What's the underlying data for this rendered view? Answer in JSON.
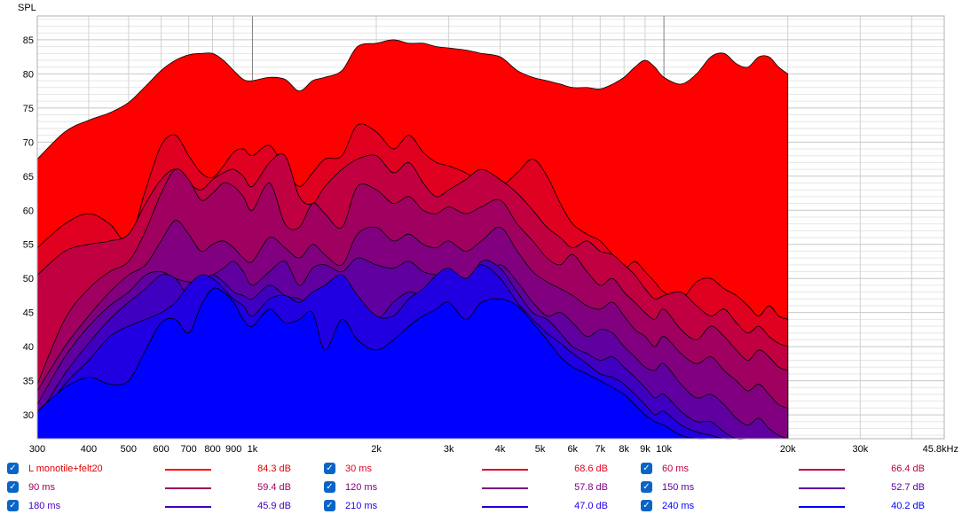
{
  "chart_data": {
    "type": "area",
    "title": "",
    "ylabel": "SPL",
    "xlabel": "",
    "x_scale": "log",
    "xlim": [
      300,
      48000
    ],
    "ylim": [
      26.5,
      88.5
    ],
    "grid": true,
    "x_ticks": [
      {
        "value": 300,
        "label": "300"
      },
      {
        "value": 400,
        "label": "400"
      },
      {
        "value": 500,
        "label": "500"
      },
      {
        "value": 600,
        "label": "600"
      },
      {
        "value": 700,
        "label": "700"
      },
      {
        "value": 800,
        "label": "800"
      },
      {
        "value": 900,
        "label": "900"
      },
      {
        "value": 1000,
        "label": "1k"
      },
      {
        "value": 2000,
        "label": "2k"
      },
      {
        "value": 3000,
        "label": "3k"
      },
      {
        "value": 4000,
        "label": "4k"
      },
      {
        "value": 5000,
        "label": "5k"
      },
      {
        "value": 6000,
        "label": "6k"
      },
      {
        "value": 7000,
        "label": "7k"
      },
      {
        "value": 8000,
        "label": "8k"
      },
      {
        "value": 9000,
        "label": "9k"
      },
      {
        "value": 10000,
        "label": "10k"
      },
      {
        "value": 20000,
        "label": "20k"
      },
      {
        "value": 30000,
        "label": "30k"
      },
      {
        "value": 45800,
        "label": "45.8kHz"
      }
    ],
    "y_ticks": [
      30,
      35,
      40,
      45,
      50,
      55,
      60,
      65,
      70,
      75,
      80,
      85
    ],
    "x": [
      300,
      350,
      400,
      450,
      500,
      550,
      600,
      650,
      700,
      750,
      800,
      850,
      900,
      950,
      1000,
      1100,
      1200,
      1300,
      1400,
      1500,
      1650,
      1800,
      2000,
      2200,
      2400,
      2600,
      2800,
      3000,
      3300,
      3600,
      4000,
      4400,
      4800,
      5200,
      5600,
      6000,
      6500,
      7000,
      7500,
      8000,
      8500,
      9000,
      9500,
      10000,
      11000,
      12000,
      13000,
      14000,
      15000,
      16000,
      17000,
      18000,
      19000,
      20000
    ],
    "series": [
      {
        "name": "L monotile+felt20",
        "color": "#ff0000",
        "value_label": "84.3 dB",
        "values": [
          67.5,
          71.5,
          73.2,
          74.3,
          75.8,
          78.2,
          80.5,
          82.0,
          82.8,
          83.0,
          83.0,
          82.0,
          80.5,
          79.2,
          79.0,
          79.5,
          79.2,
          77.5,
          79.0,
          79.5,
          80.5,
          84.0,
          84.5,
          85.0,
          84.5,
          84.5,
          84.0,
          83.8,
          83.5,
          83.0,
          82.5,
          80.5,
          79.5,
          79.0,
          78.5,
          78.0,
          78.0,
          77.8,
          78.5,
          79.5,
          81.0,
          82.0,
          81.0,
          79.5,
          78.5,
          80.0,
          82.5,
          83.0,
          81.5,
          81.0,
          82.5,
          82.5,
          81.0,
          80.0
        ]
      },
      {
        "name": "30 ms",
        "color": "#e00020",
        "value_label": "68.6 dB",
        "values": [
          54.5,
          58.0,
          59.5,
          58.0,
          55.5,
          63.0,
          69.5,
          71.0,
          68.0,
          65.5,
          64.8,
          66.5,
          68.5,
          69.0,
          68.0,
          69.5,
          66.0,
          63.5,
          65.5,
          67.5,
          68.0,
          72.5,
          71.5,
          69.0,
          71.0,
          68.5,
          67.0,
          66.5,
          65.5,
          64.0,
          63.5,
          65.5,
          67.5,
          65.0,
          61.0,
          58.0,
          56.5,
          55.5,
          53.5,
          51.5,
          52.5,
          51.0,
          49.5,
          48.0,
          47.0,
          49.5,
          50.0,
          48.5,
          47.5,
          46.0,
          44.5,
          46.0,
          44.5,
          44.0
        ]
      },
      {
        "name": "60 ms",
        "color": "#c00040",
        "value_label": "66.4 dB",
        "values": [
          50.5,
          54.0,
          55.0,
          55.5,
          56.5,
          61.0,
          64.5,
          66.0,
          64.0,
          63.0,
          64.5,
          65.5,
          66.0,
          65.0,
          63.5,
          67.0,
          68.0,
          62.0,
          61.0,
          63.5,
          66.0,
          67.5,
          68.0,
          65.5,
          67.0,
          64.0,
          62.0,
          63.0,
          64.5,
          66.0,
          64.5,
          62.5,
          60.0,
          57.5,
          56.0,
          54.5,
          55.5,
          54.0,
          53.5,
          52.0,
          50.5,
          48.5,
          47.0,
          47.5,
          48.0,
          46.0,
          44.5,
          45.5,
          43.5,
          42.0,
          43.0,
          41.5,
          40.5,
          40.0
        ]
      },
      {
        "name": "90 ms",
        "color": "#a00060",
        "value_label": "59.4 dB",
        "values": [
          34.5,
          44.0,
          48.5,
          51.0,
          52.5,
          57.0,
          62.5,
          66.0,
          64.5,
          61.5,
          62.5,
          64.0,
          63.5,
          62.0,
          60.0,
          64.0,
          58.0,
          57.5,
          61.0,
          59.5,
          57.5,
          63.5,
          63.0,
          61.0,
          62.0,
          60.0,
          59.5,
          60.5,
          59.5,
          60.5,
          61.5,
          58.0,
          55.5,
          53.0,
          52.0,
          53.5,
          51.0,
          49.0,
          50.0,
          48.0,
          46.5,
          45.0,
          44.0,
          45.5,
          42.5,
          41.0,
          43.0,
          41.5,
          39.5,
          38.0,
          39.5,
          38.5,
          37.0,
          36.5
        ]
      },
      {
        "name": "120 ms",
        "color": "#800080",
        "value_label": "57.8 dB",
        "values": [
          33.5,
          40.0,
          44.5,
          48.0,
          50.5,
          52.0,
          55.5,
          58.5,
          56.5,
          54.0,
          55.0,
          55.5,
          54.5,
          53.0,
          52.5,
          56.0,
          54.5,
          53.0,
          55.0,
          53.5,
          52.0,
          56.5,
          57.5,
          55.5,
          56.5,
          55.0,
          54.5,
          55.5,
          54.0,
          55.5,
          57.5,
          54.0,
          51.0,
          49.5,
          48.5,
          47.5,
          46.0,
          45.5,
          46.5,
          44.5,
          42.5,
          41.5,
          40.0,
          41.5,
          39.0,
          37.5,
          38.5,
          36.5,
          35.0,
          33.5,
          34.5,
          33.0,
          31.5,
          31.0
        ]
      },
      {
        "name": "150 ms",
        "color": "#6000a0",
        "value_label": "52.7 dB",
        "values": [
          31.5,
          38.5,
          43.0,
          46.0,
          48.0,
          50.5,
          51.0,
          50.0,
          49.5,
          49.5,
          50.5,
          51.5,
          52.5,
          51.0,
          49.0,
          51.0,
          52.5,
          49.0,
          51.5,
          52.0,
          51.0,
          53.0,
          52.0,
          51.5,
          52.5,
          51.0,
          50.5,
          50.0,
          49.5,
          50.0,
          52.0,
          49.5,
          46.5,
          44.5,
          45.0,
          43.5,
          41.5,
          42.5,
          42.0,
          40.0,
          38.5,
          37.0,
          36.5,
          37.5,
          34.5,
          32.5,
          33.0,
          31.5,
          29.5,
          28.5,
          29.5,
          28.0,
          27.0,
          26.5
        ]
      },
      {
        "name": "180 ms",
        "color": "#4000c0",
        "value_label": "45.9 dB",
        "values": [
          29.5,
          36.0,
          40.5,
          44.0,
          46.5,
          48.5,
          50.5,
          50.0,
          47.5,
          49.5,
          50.5,
          49.5,
          48.0,
          47.5,
          47.0,
          49.0,
          47.5,
          47.0,
          46.0,
          47.5,
          46.5,
          46.5,
          44.0,
          46.5,
          48.0,
          47.5,
          48.0,
          49.0,
          48.0,
          52.5,
          51.5,
          48.0,
          45.0,
          44.0,
          42.0,
          40.0,
          39.0,
          38.0,
          38.5,
          37.0,
          35.5,
          34.0,
          32.5,
          33.0,
          30.5,
          29.0,
          29.0,
          27.5,
          26.5,
          26.5,
          26.5,
          26.5,
          26.5,
          26.5
        ]
      },
      {
        "name": "210 ms",
        "color": "#2000e0",
        "value_label": "47.0 dB",
        "values": [
          29.0,
          34.5,
          38.0,
          41.5,
          43.0,
          44.0,
          45.0,
          46.5,
          49.0,
          50.5,
          50.0,
          48.5,
          47.0,
          46.0,
          44.5,
          47.0,
          47.5,
          46.5,
          48.0,
          49.0,
          50.5,
          47.5,
          44.5,
          44.5,
          47.0,
          48.5,
          50.5,
          51.5,
          50.0,
          52.0,
          50.0,
          46.5,
          44.0,
          42.0,
          40.5,
          39.0,
          37.5,
          36.0,
          35.5,
          34.5,
          33.0,
          31.5,
          30.0,
          30.5,
          28.5,
          27.5,
          27.0,
          26.5,
          26.5,
          26.5,
          26.5,
          26.5,
          26.5,
          26.5
        ]
      },
      {
        "name": "240 ms",
        "color": "#0000ff",
        "value_label": "40.2 dB",
        "values": [
          30.5,
          34.0,
          35.5,
          34.5,
          35.0,
          39.5,
          43.5,
          44.0,
          42.0,
          46.0,
          48.5,
          48.0,
          46.5,
          44.0,
          43.0,
          45.5,
          43.5,
          44.0,
          45.0,
          39.5,
          44.0,
          41.0,
          39.5,
          41.0,
          43.0,
          44.5,
          45.5,
          46.5,
          44.0,
          46.5,
          47.0,
          46.0,
          43.5,
          41.0,
          38.5,
          37.0,
          36.0,
          35.0,
          34.0,
          33.0,
          31.5,
          30.0,
          29.0,
          28.5,
          27.0,
          26.5,
          26.5,
          26.5,
          26.5,
          26.5,
          26.5,
          26.5,
          26.5,
          26.5
        ]
      }
    ]
  },
  "legend_check_glyph": "✓"
}
